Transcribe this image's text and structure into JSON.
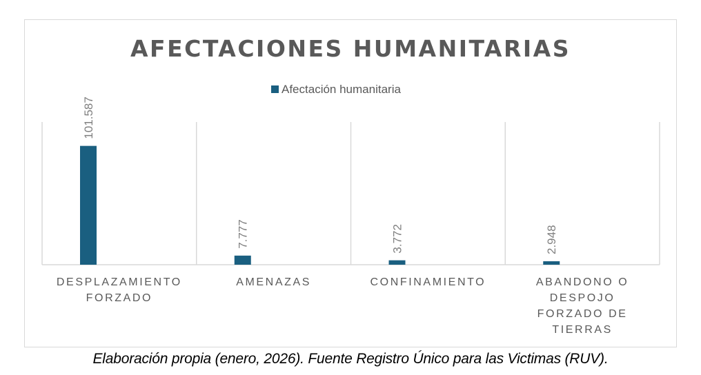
{
  "chart_data": {
    "type": "bar",
    "title": "AFECTACIONES HUMANITARIAS",
    "legend": {
      "position": "top",
      "entries": [
        "Afectación humanitaria"
      ]
    },
    "categories": [
      [
        "DESPLAZAMIENTO",
        "FORZADO"
      ],
      [
        "AMENAZAS"
      ],
      [
        "CONFINAMIENTO"
      ],
      [
        "ABANDONO O",
        "DESPOJO",
        "FORZADO DE",
        "TIERRAS"
      ]
    ],
    "series": [
      {
        "name": "Afectación humanitaria",
        "values": [
          101587,
          7777,
          3772,
          2948
        ],
        "labels": [
          "101.587",
          "7.777",
          "3.772",
          "2.948"
        ],
        "color": "#1a5f80"
      }
    ],
    "xlabel": "",
    "ylabel": "",
    "ylim": [
      0,
      122000
    ],
    "grid": "vertical category separators",
    "colors": {
      "title": "#595959",
      "text": "#595959",
      "grid": "#d9d9d9",
      "border": "#d9d9d9"
    }
  },
  "caption": "Elaboración propia (enero, 2026). Fuente Registro Único para las Victimas (RUV)."
}
